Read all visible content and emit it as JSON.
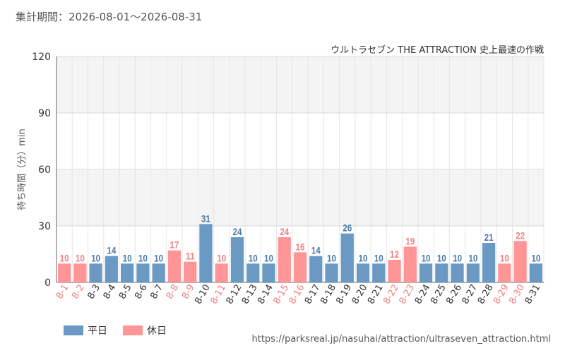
{
  "header": {
    "period": "集計期間：2026-08-01～2026-08-31"
  },
  "footer": {
    "url": "https://parksreal.jp/nasuhai/attraction/ultraseven_attraction.html"
  },
  "colors": {
    "weekday": "#6a9ac4",
    "holiday": "#ff9597",
    "weekday_label": "#4a7aaa",
    "holiday_label": "#f07f81"
  },
  "chart_data": {
    "type": "bar",
    "title": "ウルトラセブン THE ATTRACTION 史上最速の作戦",
    "ylabel": "待ち時間（分）min",
    "xlabel": "",
    "ylim": [
      0,
      120
    ],
    "yticks": [
      0,
      30,
      60,
      90,
      120
    ],
    "grid": true,
    "legend_position": "bottom-left",
    "legend": [
      {
        "name": "平日",
        "type": "weekday"
      },
      {
        "name": "休日",
        "type": "holiday"
      }
    ],
    "categories": [
      "8-1",
      "8-2",
      "8-3",
      "8-4",
      "8-5",
      "8-6",
      "8-7",
      "8-8",
      "8-9",
      "8-10",
      "8-11",
      "8-12",
      "8-13",
      "8-14",
      "8-15",
      "8-16",
      "8-17",
      "8-18",
      "8-19",
      "8-20",
      "8-21",
      "8-22",
      "8-23",
      "8-24",
      "8-25",
      "8-26",
      "8-27",
      "8-28",
      "8-29",
      "8-30",
      "8-31"
    ],
    "values": [
      10,
      10,
      10,
      14,
      10,
      10,
      10,
      17,
      11,
      31,
      10,
      24,
      10,
      10,
      24,
      16,
      14,
      10,
      26,
      10,
      10,
      12,
      19,
      10,
      10,
      10,
      10,
      21,
      10,
      22,
      10
    ],
    "day_type": [
      "holiday",
      "holiday",
      "weekday",
      "weekday",
      "weekday",
      "weekday",
      "weekday",
      "holiday",
      "holiday",
      "weekday",
      "holiday",
      "weekday",
      "weekday",
      "weekday",
      "holiday",
      "holiday",
      "weekday",
      "weekday",
      "weekday",
      "weekday",
      "weekday",
      "holiday",
      "holiday",
      "weekday",
      "weekday",
      "weekday",
      "weekday",
      "weekday",
      "holiday",
      "holiday",
      "weekday"
    ]
  }
}
